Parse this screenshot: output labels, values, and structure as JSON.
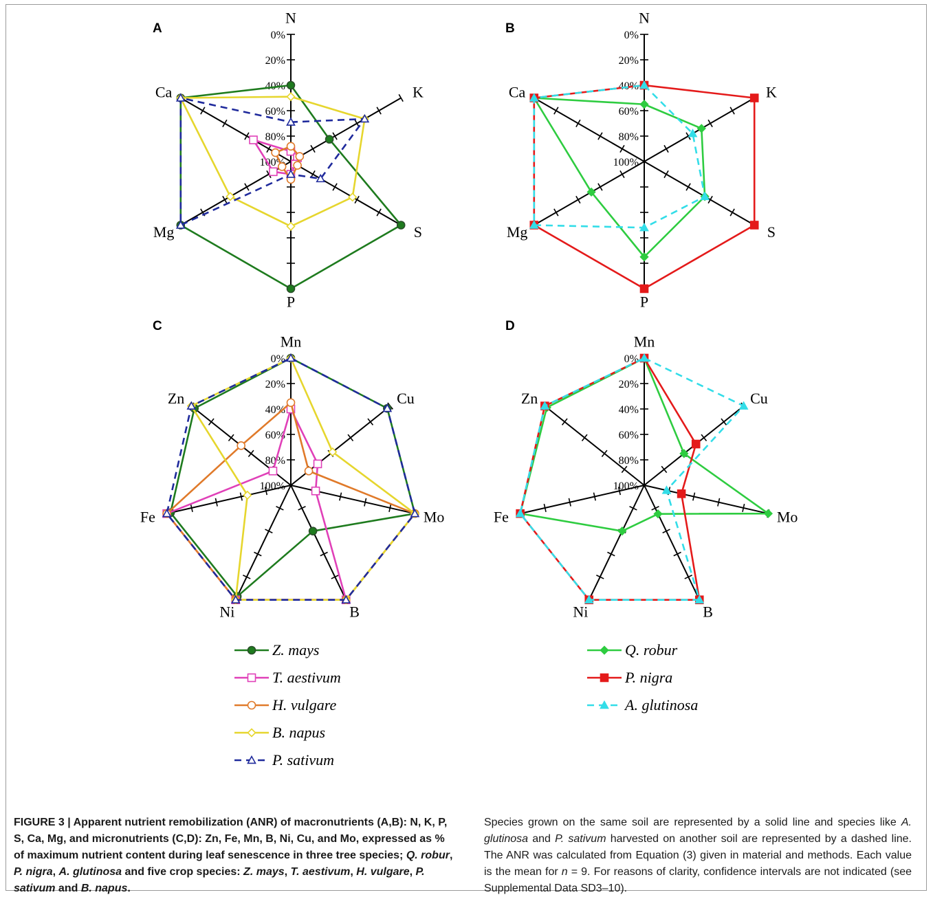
{
  "figure": {
    "caption_lead": "FIGURE 3 | Apparent nutrient remobilization (ANR) of macronutrients (A,B): N, K, P, S, Ca, Mg, and micronutrients (C,D): Zn, Fe, Mn, B, Ni, Cu, and Mo, expressed as % of maximum nutrient content during leaf senescence in three tree species;",
    "caption_species_tree": [
      "Q. robur",
      "P. nigra",
      "A. glutinosa"
    ],
    "caption_crop_intro": "and five crop species:",
    "caption_species_crop": [
      "Z. mays",
      "T. aestivum",
      "H. vulgare",
      "P. sativum",
      "B. napus"
    ],
    "caption_right": [
      {
        "t": "Species grown on the same soil are represented by a solid line and species like "
      },
      {
        "t": "A. glutinosa",
        "i": true
      },
      {
        "t": " and "
      },
      {
        "t": "P. sativum",
        "i": true
      },
      {
        "t": " harvested on another soil are represented by a dashed line. The ANR was calculated from Equation (3) given in material and methods. Each value is the mean for "
      },
      {
        "t": "n",
        "i": true
      },
      {
        "t": " = 9. For reasons of clarity, confidence intervals are not indicated (see Supplemental Data SD3–10)."
      }
    ]
  },
  "chart_data": [
    {
      "type": "radar",
      "panel": "A",
      "axes": [
        "N",
        "K",
        "S",
        "P",
        "Mg",
        "Ca"
      ],
      "tick_labels": [
        "0%",
        "20%",
        "40%",
        "60%",
        "80%",
        "100%"
      ],
      "range": [
        100,
        0
      ],
      "series": [
        {
          "name": "Z. mays",
          "color": "#1e7b1e",
          "marker": "circle-filled",
          "dash": false,
          "values": [
            40,
            65,
            0,
            0,
            0,
            0
          ]
        },
        {
          "name": "T. aestivum",
          "color": "#e040b8",
          "marker": "square-open",
          "dash": false,
          "values": [
            92,
            94,
            96,
            90,
            84,
            66
          ]
        },
        {
          "name": "H. vulgare",
          "color": "#e07a2a",
          "marker": "circle-open",
          "dash": false,
          "values": [
            88,
            92,
            94,
            86,
            92,
            86
          ]
        },
        {
          "name": "B. napus",
          "color": "#e6d62e",
          "marker": "diamond-open",
          "dash": false,
          "values": [
            49,
            33,
            44,
            49,
            45,
            0
          ]
        },
        {
          "name": "P. sativum",
          "color": "#1f2a9c",
          "marker": "triangle-open",
          "dash": true,
          "values": [
            69,
            33,
            73,
            90,
            0,
            0
          ]
        }
      ]
    },
    {
      "type": "radar",
      "panel": "B",
      "axes": [
        "N",
        "K",
        "S",
        "P",
        "Mg",
        "Ca"
      ],
      "tick_labels": [
        "0%",
        "20%",
        "40%",
        "60%",
        "80%",
        "100%"
      ],
      "range": [
        100,
        0
      ],
      "series": [
        {
          "name": "Q. robur",
          "color": "#2ecc40",
          "marker": "diamond-filled",
          "dash": false,
          "values": [
            55,
            48,
            45,
            25,
            52,
            0
          ]
        },
        {
          "name": "P. nigra",
          "color": "#e41a1a",
          "marker": "square-filled",
          "dash": false,
          "values": [
            40,
            0,
            0,
            0,
            0,
            0
          ]
        },
        {
          "name": "A. glutinosa",
          "color": "#33dde8",
          "marker": "triangle-filled",
          "dash": true,
          "values": [
            40,
            56,
            45,
            48,
            0,
            0
          ]
        }
      ]
    },
    {
      "type": "radar",
      "panel": "C",
      "axes": [
        "Mn",
        "Cu",
        "Mo",
        "B",
        "Ni",
        "Fe",
        "Zn"
      ],
      "tick_labels": [
        "0%",
        "20%",
        "40%",
        "60%",
        "80%",
        "100%"
      ],
      "range": [
        100,
        0
      ],
      "series": [
        {
          "name": "Z. mays",
          "color": "#1e7b1e",
          "marker": "circle-filled",
          "dash": false,
          "values": [
            0,
            3,
            0,
            60,
            3,
            3,
            3
          ]
        },
        {
          "name": "T. aestivum",
          "color": "#e040b8",
          "marker": "square-open",
          "dash": false,
          "values": [
            40,
            73,
            80,
            0,
            0,
            0,
            82
          ]
        },
        {
          "name": "H. vulgare",
          "color": "#e07a2a",
          "marker": "circle-open",
          "dash": false,
          "values": [
            35,
            82,
            0,
            0,
            0,
            0,
            50
          ]
        },
        {
          "name": "B. napus",
          "color": "#e6d62e",
          "marker": "diamond-open",
          "dash": false,
          "values": [
            0,
            58,
            0,
            0,
            0,
            65,
            0
          ]
        },
        {
          "name": "P. sativum",
          "color": "#1f2a9c",
          "marker": "triangle-open",
          "dash": true,
          "values": [
            0,
            3,
            0,
            0,
            0,
            0,
            0
          ]
        }
      ]
    },
    {
      "type": "radar",
      "panel": "D",
      "axes": [
        "Mn",
        "Cu",
        "Mo",
        "B",
        "Ni",
        "Fe",
        "Zn"
      ],
      "tick_labels": [
        "0%",
        "20%",
        "40%",
        "60%",
        "80%",
        "100%"
      ],
      "range": [
        100,
        0
      ],
      "series": [
        {
          "name": "Q. robur",
          "color": "#2ecc40",
          "marker": "diamond-filled",
          "dash": false,
          "values": [
            0,
            60,
            0,
            75,
            60,
            0,
            2
          ]
        },
        {
          "name": "P. nigra",
          "color": "#e41a1a",
          "marker": "square-filled",
          "dash": false,
          "values": [
            0,
            48,
            70,
            0,
            0,
            0,
            0
          ]
        },
        {
          "name": "A. glutinosa",
          "color": "#33dde8",
          "marker": "triangle-filled",
          "dash": true,
          "values": [
            0,
            0,
            82,
            0,
            0,
            0,
            0
          ]
        }
      ]
    }
  ],
  "legends": {
    "crops": [
      {
        "name": "Z. mays",
        "color": "#1e7b1e",
        "marker": "circle-filled",
        "dash": false
      },
      {
        "name": "T. aestivum",
        "color": "#e040b8",
        "marker": "square-open",
        "dash": false
      },
      {
        "name": "H. vulgare",
        "color": "#e07a2a",
        "marker": "circle-open",
        "dash": false
      },
      {
        "name": "B. napus",
        "color": "#e6d62e",
        "marker": "diamond-open",
        "dash": false
      },
      {
        "name": "P. sativum",
        "color": "#1f2a9c",
        "marker": "triangle-open",
        "dash": true
      }
    ],
    "trees": [
      {
        "name": "Q. robur",
        "color": "#2ecc40",
        "marker": "diamond-filled",
        "dash": false
      },
      {
        "name": "P. nigra",
        "color": "#e41a1a",
        "marker": "square-filled",
        "dash": false
      },
      {
        "name": "A. glutinosa",
        "color": "#33dde8",
        "marker": "triangle-filled",
        "dash": true
      }
    ]
  }
}
